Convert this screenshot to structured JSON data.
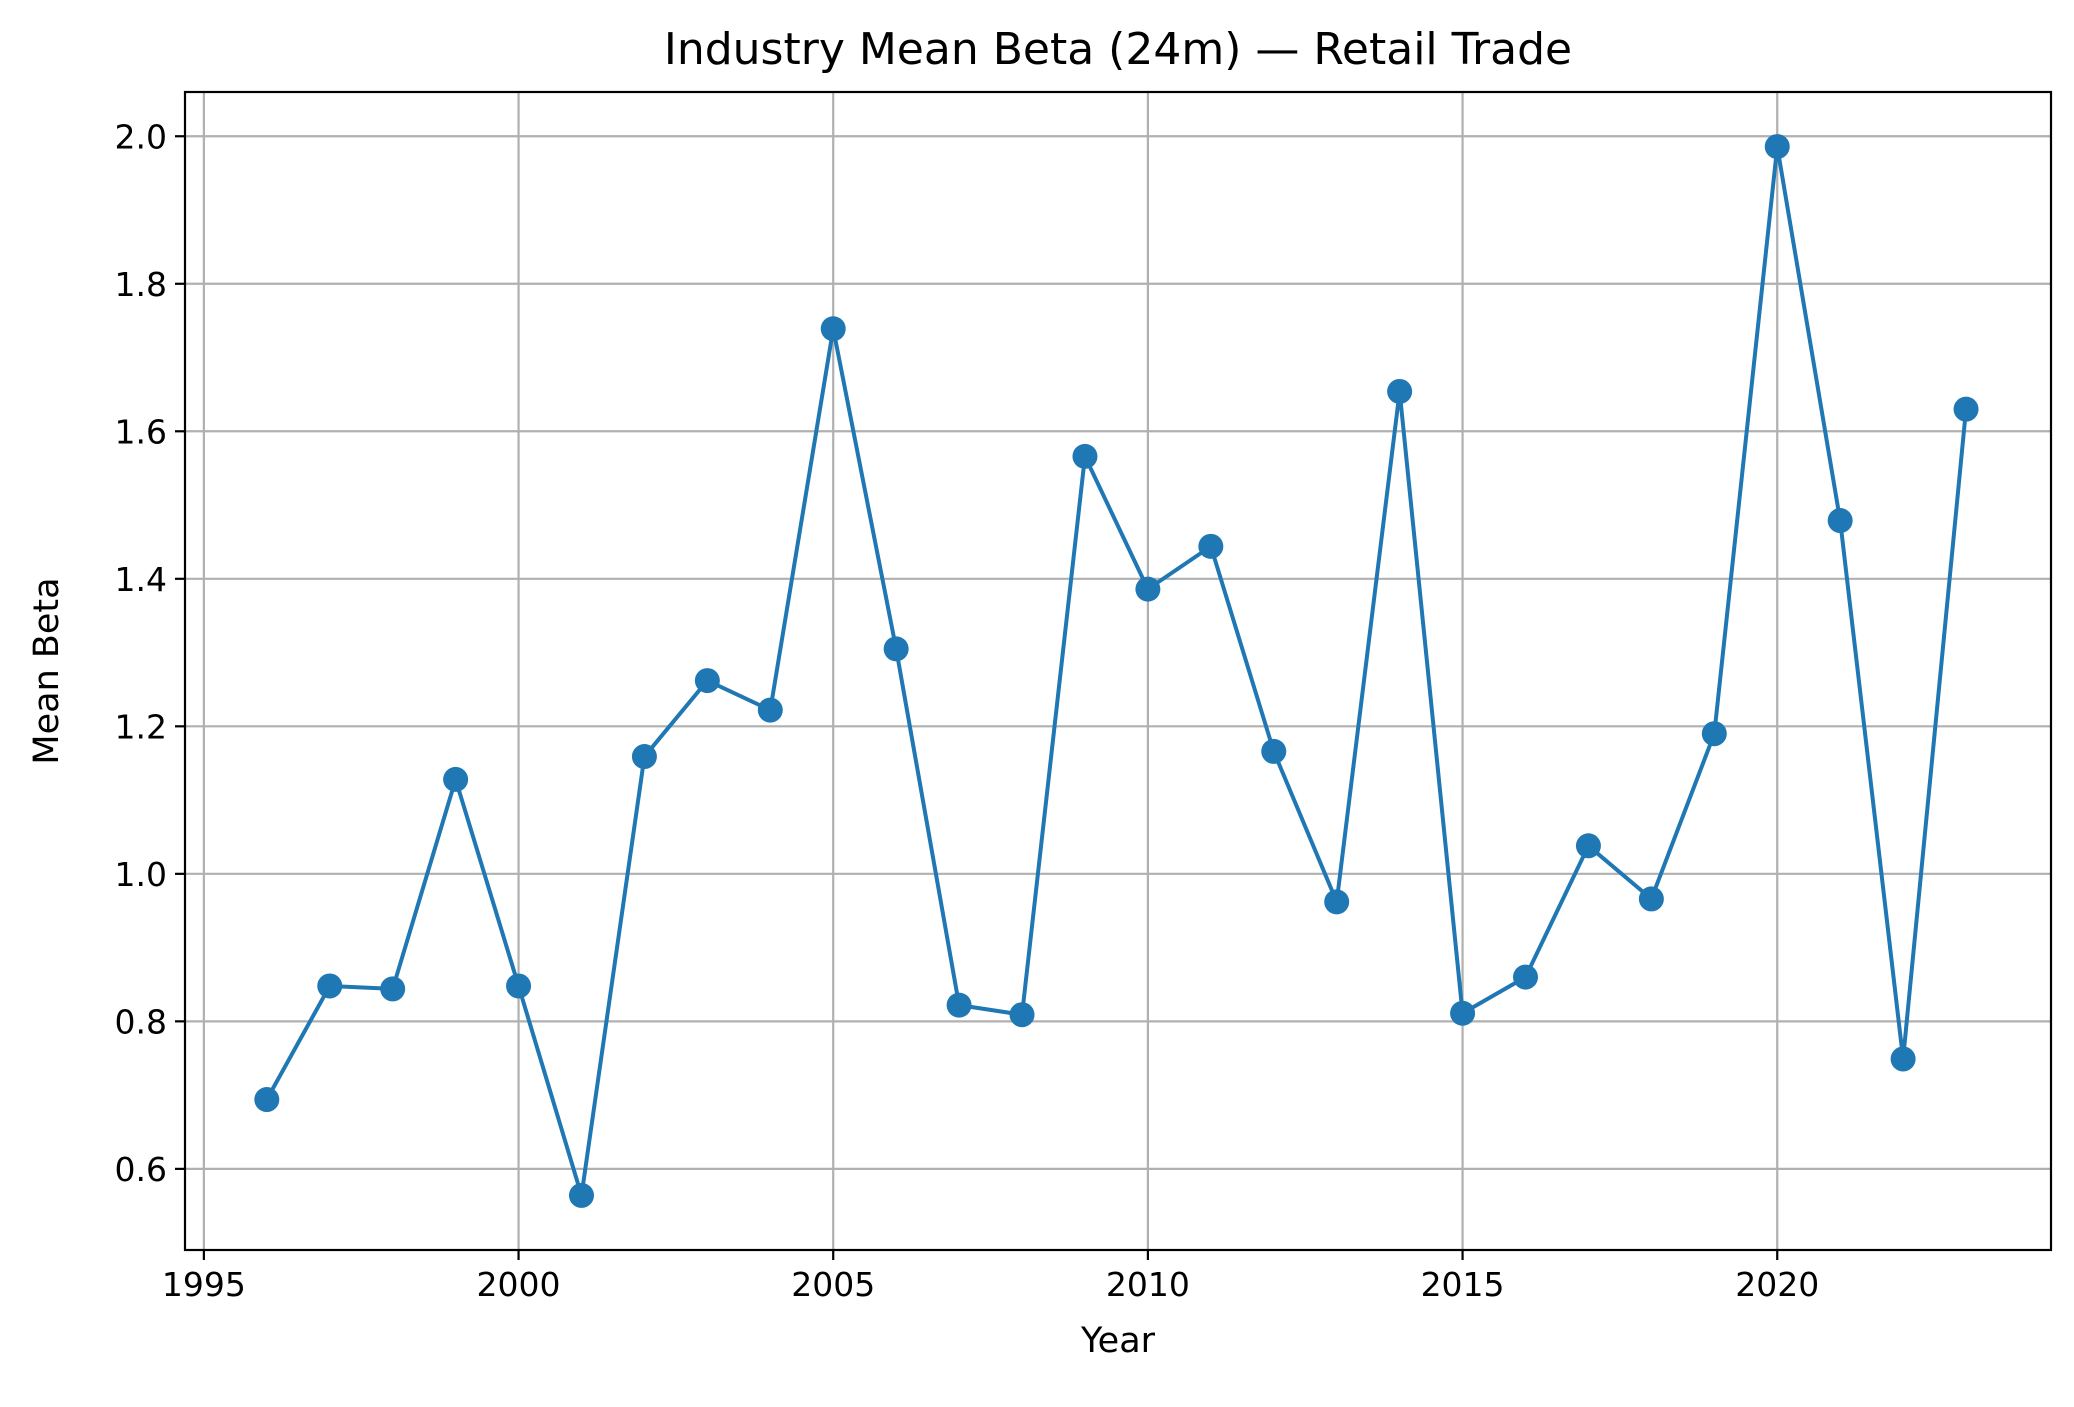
{
  "chart_data": {
    "type": "line",
    "title": "Industry Mean Beta (24m) — Retail Trade",
    "xlabel": "Year",
    "ylabel": "Mean Beta",
    "xlim": [
      1994.7,
      2024.35
    ],
    "ylim": [
      0.49,
      2.06
    ],
    "xticks": [
      1995,
      2000,
      2005,
      2010,
      2015,
      2020
    ],
    "yticks": [
      0.6,
      0.8,
      1.0,
      1.2,
      1.4,
      1.6,
      1.8,
      2.0
    ],
    "grid": true,
    "color": "#1f77b4",
    "series": [
      {
        "name": "Mean Beta",
        "x": [
          1996,
          1997,
          1998,
          1999,
          2000,
          2001,
          2002,
          2003,
          2004,
          2005,
          2006,
          2007,
          2008,
          2009,
          2010,
          2011,
          2012,
          2013,
          2014,
          2015,
          2016,
          2017,
          2018,
          2019,
          2020,
          2021,
          2022,
          2023
        ],
        "values": [
          0.694,
          0.848,
          0.844,
          1.128,
          0.848,
          0.564,
          1.159,
          1.262,
          1.222,
          1.739,
          1.305,
          0.822,
          0.809,
          1.566,
          1.386,
          1.444,
          1.166,
          0.962,
          1.654,
          0.811,
          0.86,
          1.038,
          0.966,
          1.19,
          1.986,
          1.479,
          0.749,
          1.63
        ]
      }
    ]
  }
}
